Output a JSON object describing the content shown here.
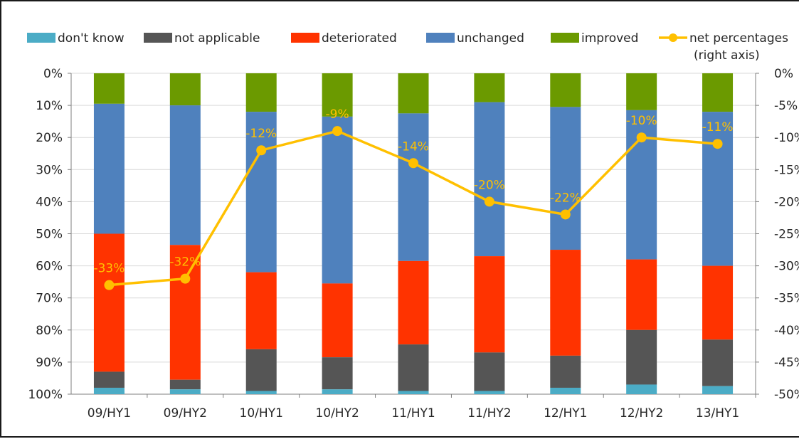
{
  "chart_data": {
    "type": "bar",
    "stacked": true,
    "categories": [
      "09/HY1",
      "09/HY2",
      "10/HY1",
      "10/HY2",
      "11/HY1",
      "11/HY2",
      "12/HY1",
      "12/HY2",
      "13/HY1"
    ],
    "series": [
      {
        "name": "improved",
        "color": "#6b9a00",
        "values": [
          9.5,
          10,
          12,
          13.5,
          12.5,
          9,
          10.5,
          11.5,
          12
        ]
      },
      {
        "name": "unchanged",
        "color": "#4f81bd",
        "values": [
          40.5,
          43.5,
          50,
          52,
          46,
          48,
          44.5,
          46.5,
          48
        ]
      },
      {
        "name": "deteriorated",
        "color": "#ff3300",
        "values": [
          43,
          42,
          24,
          23,
          26,
          30,
          33,
          22,
          23
        ]
      },
      {
        "name": "not applicable",
        "color": "#555555",
        "values": [
          5,
          3,
          13,
          10,
          14.5,
          12,
          10,
          17,
          14.5
        ]
      },
      {
        "name": "don't know",
        "color": "#4bacc6",
        "values": [
          2,
          1.5,
          1,
          1.5,
          1,
          1,
          2,
          3,
          2.5
        ]
      }
    ],
    "line": {
      "name": "net percentages\n(right axis)",
      "color": "#ffc000",
      "values": [
        -33,
        -32,
        -12,
        -9,
        -14,
        -20,
        -22,
        -10,
        -11
      ],
      "labels": [
        "-33%",
        "-32%",
        "-12%",
        "-9%",
        "-14%",
        "-20%",
        "-22%",
        "-10%",
        "-11%"
      ]
    },
    "legend_order": [
      "don't know",
      "not applicable",
      "deteriorated",
      "unchanged",
      "improved",
      "net percentages\n(right axis)"
    ],
    "legend_position": "top",
    "y_left": {
      "ticks": [
        "0%",
        "10%",
        "20%",
        "30%",
        "40%",
        "50%",
        "60%",
        "70%",
        "80%",
        "90%",
        "100%"
      ],
      "range": [
        0,
        100
      ],
      "reversed": true
    },
    "y_right": {
      "ticks": [
        "0%",
        "-5%",
        "-10%",
        "-15%",
        "-20%",
        "-25%",
        "-30%",
        "-35%",
        "-40%",
        "-45%",
        "-50%"
      ],
      "range": [
        0,
        -50
      ]
    },
    "grid": true
  }
}
